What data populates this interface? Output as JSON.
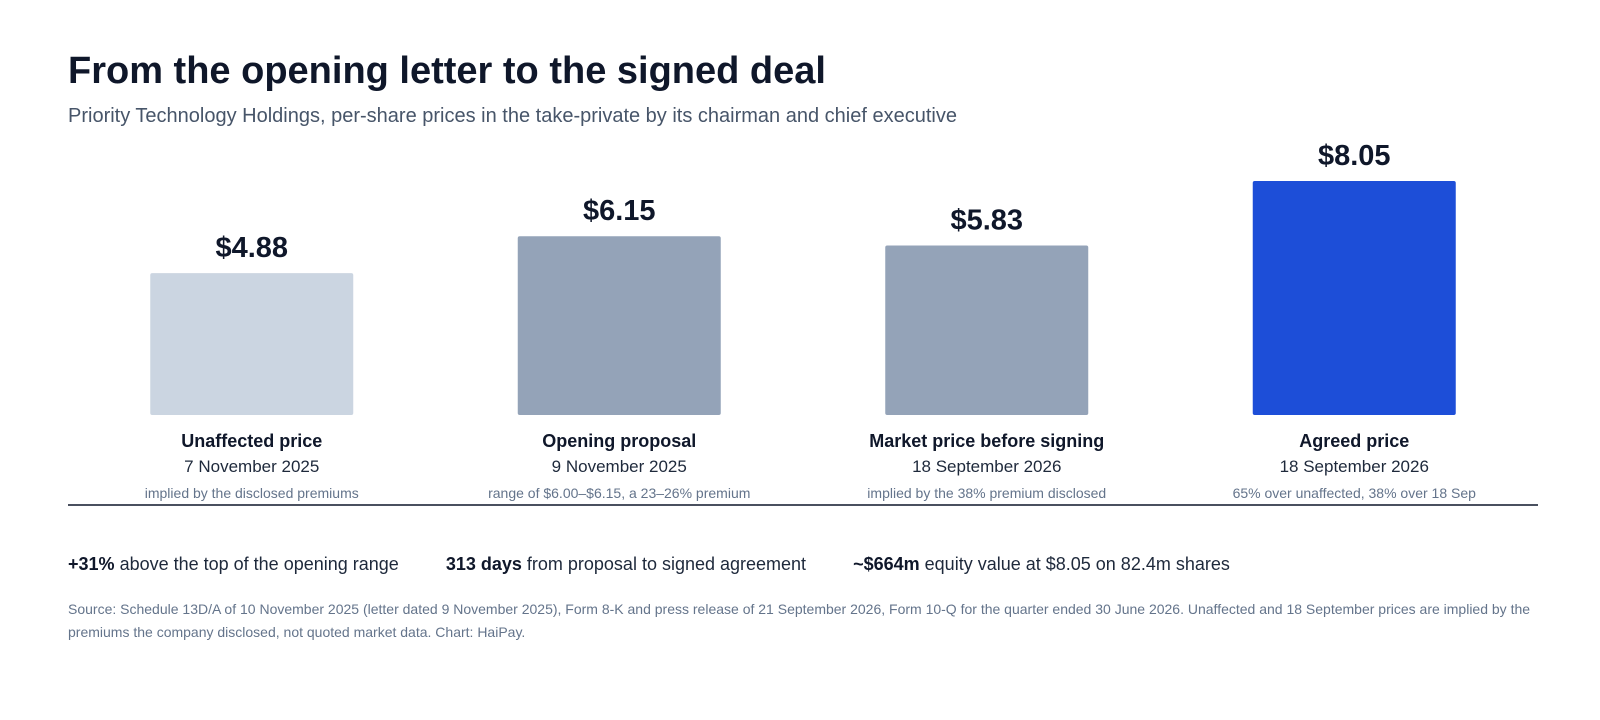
{
  "chart_data": {
    "type": "bar",
    "title": "From the opening letter to the signed deal",
    "subtitle": "Priority Technology Holdings, per-share prices in the take-private by its chairman and chief executive",
    "categories": [
      "Unaffected price",
      "Opening proposal",
      "Market price before signing",
      "Agreed price"
    ],
    "dates": [
      "7 November 2025",
      "9 November 2025",
      "18 September 2026",
      "18 September 2026"
    ],
    "notes": [
      "implied by the disclosed premiums",
      "range of $6.00–$6.15, a 23–26% premium",
      "implied by the 38% premium disclosed",
      "65% over unaffected, 38% over 18 Sep"
    ],
    "values": [
      4.88,
      6.15,
      5.83,
      8.05
    ],
    "value_labels": [
      "$4.88",
      "$6.15",
      "$5.83",
      "$8.05"
    ],
    "colors": [
      "#cbd5e1",
      "#94a3b8",
      "#94a3b8",
      "#1d4ed8"
    ],
    "grid": false,
    "legend": "none"
  },
  "stats": [
    {
      "value": "+31%",
      "text": "above the top of the opening range"
    },
    {
      "value": "313 days",
      "text": "from proposal to signed agreement"
    },
    {
      "value": "~$664m",
      "text": "equity value at $8.05 on 82.4m shares"
    }
  ],
  "source": "Source: Schedule 13D/A of 10 November 2025 (letter dated 9 November 2025), Form 8-K and press release of 21 September 2026, Form 10-Q for the quarter ended 30 June 2026. Unaffected and 18 September prices are implied by the premiums the company disclosed, not quoted market data. Chart: HaiPay.",
  "colors": {
    "axis": "#0f172a",
    "title": "#0f172a",
    "muted": "#64748b"
  }
}
